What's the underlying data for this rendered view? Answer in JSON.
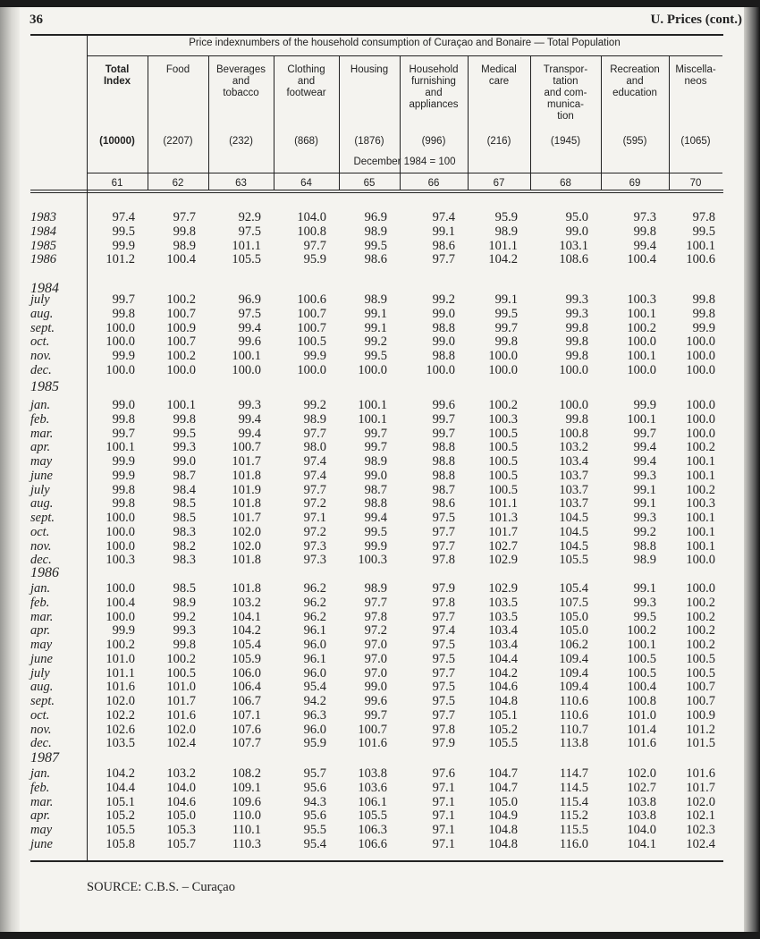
{
  "page_number": "36",
  "running_head": "U.  Prices  (cont.)",
  "table": {
    "title": "Price indexnumbers of the household consumption of Curaçao and Bonaire — Total Population",
    "base": "December 1984 = 100",
    "columns": [
      {
        "label": [
          "Total",
          "Index"
        ],
        "bold": true,
        "weight": "(10000)",
        "number": "61"
      },
      {
        "label": [
          "Food"
        ],
        "weight": "(2207)",
        "number": "62"
      },
      {
        "label": [
          "Beverages",
          "and",
          "tobacco"
        ],
        "weight": "(232)",
        "number": "63"
      },
      {
        "label": [
          "Clothing",
          "and",
          "footwear"
        ],
        "weight": "(868)",
        "number": "64"
      },
      {
        "label": [
          "Housing"
        ],
        "weight": "(1876)",
        "number": "65"
      },
      {
        "label": [
          "Household",
          "furnishing",
          "and",
          "appliances"
        ],
        "weight": "(996)",
        "number": "66"
      },
      {
        "label": [
          "Medical",
          "care"
        ],
        "weight": "(216)",
        "number": "67"
      },
      {
        "label": [
          "Transpor-",
          "tation",
          "and com-",
          "munica-",
          "tion"
        ],
        "weight": "(1945)",
        "number": "68"
      },
      {
        "label": [
          "Recreation",
          "and",
          "education"
        ],
        "weight": "(595)",
        "number": "69"
      },
      {
        "label": [
          "Miscella-",
          "neos"
        ],
        "weight": "(1065)",
        "number": "70"
      }
    ],
    "sections": [
      {
        "heading": "",
        "rows": [
          {
            "label": "1983",
            "values": [
              "97.4",
              "97.7",
              "92.9",
              "104.0",
              "96.9",
              "97.4",
              "95.9",
              "95.0",
              "97.3",
              "97.8"
            ]
          },
          {
            "label": "1984",
            "values": [
              "99.5",
              "99.8",
              "97.5",
              "100.8",
              "98.9",
              "99.1",
              "98.9",
              "99.0",
              "99.8",
              "99.5"
            ]
          },
          {
            "label": "1985",
            "values": [
              "99.9",
              "98.9",
              "101.1",
              "97.7",
              "99.5",
              "98.6",
              "101.1",
              "103.1",
              "99.4",
              "100.1"
            ]
          },
          {
            "label": "1986",
            "values": [
              "101.2",
              "100.4",
              "105.5",
              "95.9",
              "98.6",
              "97.7",
              "104.2",
              "108.6",
              "100.4",
              "100.6"
            ]
          }
        ]
      },
      {
        "heading": "1984",
        "rows": [
          {
            "label": "july",
            "values": [
              "99.7",
              "100.2",
              "96.9",
              "100.6",
              "98.9",
              "99.2",
              "99.1",
              "99.3",
              "100.3",
              "99.8"
            ]
          },
          {
            "label": "aug.",
            "values": [
              "99.8",
              "100.7",
              "97.5",
              "100.7",
              "99.1",
              "99.0",
              "99.5",
              "99.3",
              "100.1",
              "99.8"
            ]
          },
          {
            "label": "sept.",
            "values": [
              "100.0",
              "100.9",
              "99.4",
              "100.7",
              "99.1",
              "98.8",
              "99.7",
              "99.8",
              "100.2",
              "99.9"
            ]
          },
          {
            "label": "oct.",
            "values": [
              "100.0",
              "100.7",
              "99.6",
              "100.5",
              "99.2",
              "99.0",
              "99.8",
              "99.8",
              "100.0",
              "100.0"
            ]
          },
          {
            "label": "nov.",
            "values": [
              "99.9",
              "100.2",
              "100.1",
              "99.9",
              "99.5",
              "98.8",
              "100.0",
              "99.8",
              "100.1",
              "100.0"
            ]
          },
          {
            "label": "dec.",
            "values": [
              "100.0",
              "100.0",
              "100.0",
              "100.0",
              "100.0",
              "100.0",
              "100.0",
              "100.0",
              "100.0",
              "100.0"
            ]
          }
        ]
      },
      {
        "heading": "1985",
        "rows": [
          {
            "label": "jan.",
            "values": [
              "99.0",
              "100.1",
              "99.3",
              "99.2",
              "100.1",
              "99.6",
              "100.2",
              "100.0",
              "99.9",
              "100.0"
            ]
          },
          {
            "label": "feb.",
            "values": [
              "99.8",
              "99.8",
              "99.4",
              "98.9",
              "100.1",
              "99.7",
              "100.3",
              "99.8",
              "100.1",
              "100.0"
            ]
          },
          {
            "label": "mar.",
            "values": [
              "99.7",
              "99.5",
              "99.4",
              "97.7",
              "99.7",
              "99.7",
              "100.5",
              "100.8",
              "99.7",
              "100.0"
            ]
          },
          {
            "label": "apr.",
            "values": [
              "100.1",
              "99.3",
              "100.7",
              "98.0",
              "99.7",
              "98.8",
              "100.5",
              "103.2",
              "99.4",
              "100.2"
            ]
          },
          {
            "label": "may",
            "values": [
              "99.9",
              "99.0",
              "101.7",
              "97.4",
              "98.9",
              "98.8",
              "100.5",
              "103.4",
              "99.4",
              "100.1"
            ]
          },
          {
            "label": "june",
            "values": [
              "99.9",
              "98.7",
              "101.8",
              "97.4",
              "99.0",
              "98.8",
              "100.5",
              "103.7",
              "99.3",
              "100.1"
            ]
          },
          {
            "label": "july",
            "values": [
              "99.8",
              "98.4",
              "101.9",
              "97.7",
              "98.7",
              "98.7",
              "100.5",
              "103.7",
              "99.1",
              "100.2"
            ]
          },
          {
            "label": "aug.",
            "values": [
              "99.8",
              "98.5",
              "101.8",
              "97.2",
              "98.8",
              "98.6",
              "101.1",
              "103.7",
              "99.1",
              "100.3"
            ]
          },
          {
            "label": "sept.",
            "values": [
              "100.0",
              "98.5",
              "101.7",
              "97.1",
              "99.4",
              "97.5",
              "101.3",
              "104.5",
              "99.3",
              "100.1"
            ]
          },
          {
            "label": "oct.",
            "values": [
              "100.0",
              "98.3",
              "102.0",
              "97.2",
              "99.5",
              "97.7",
              "101.7",
              "104.5",
              "99.2",
              "100.1"
            ]
          },
          {
            "label": "nov.",
            "values": [
              "100.0",
              "98.2",
              "102.0",
              "97.3",
              "99.9",
              "97.7",
              "102.7",
              "104.5",
              "98.8",
              "100.1"
            ]
          },
          {
            "label": "dec.",
            "values": [
              "100.3",
              "98.3",
              "101.8",
              "97.3",
              "100.3",
              "97.8",
              "102.9",
              "105.5",
              "98.9",
              "100.0"
            ]
          }
        ]
      },
      {
        "heading": "1986",
        "rows": [
          {
            "label": "jan.",
            "values": [
              "100.0",
              "98.5",
              "101.8",
              "96.2",
              "98.9",
              "97.9",
              "102.9",
              "105.4",
              "99.1",
              "100.0"
            ]
          },
          {
            "label": "feb.",
            "values": [
              "100.4",
              "98.9",
              "103.2",
              "96.2",
              "97.7",
              "97.8",
              "103.5",
              "107.5",
              "99.3",
              "100.2"
            ]
          },
          {
            "label": "mar.",
            "values": [
              "100.0",
              "99.2",
              "104.1",
              "96.2",
              "97.8",
              "97.7",
              "103.5",
              "105.0",
              "99.5",
              "100.2"
            ]
          },
          {
            "label": "apr.",
            "values": [
              "99.9",
              "99.3",
              "104.2",
              "96.1",
              "97.2",
              "97.4",
              "103.4",
              "105.0",
              "100.2",
              "100.2"
            ]
          },
          {
            "label": "may",
            "values": [
              "100.2",
              "99.8",
              "105.4",
              "96.0",
              "97.0",
              "97.5",
              "103.4",
              "106.2",
              "100.1",
              "100.2"
            ]
          },
          {
            "label": "june",
            "values": [
              "101.0",
              "100.2",
              "105.9",
              "96.1",
              "97.0",
              "97.5",
              "104.4",
              "109.4",
              "100.5",
              "100.5"
            ]
          },
          {
            "label": "july",
            "values": [
              "101.1",
              "100.5",
              "106.0",
              "96.0",
              "97.0",
              "97.7",
              "104.2",
              "109.4",
              "100.5",
              "100.5"
            ]
          },
          {
            "label": "aug.",
            "values": [
              "101.6",
              "101.0",
              "106.4",
              "95.4",
              "99.0",
              "97.5",
              "104.6",
              "109.4",
              "100.4",
              "100.7"
            ]
          },
          {
            "label": "sept.",
            "values": [
              "102.0",
              "101.7",
              "106.7",
              "94.2",
              "99.6",
              "97.5",
              "104.8",
              "110.6",
              "100.8",
              "100.7"
            ]
          },
          {
            "label": "oct.",
            "values": [
              "102.2",
              "101.6",
              "107.1",
              "96.3",
              "99.7",
              "97.7",
              "105.1",
              "110.6",
              "101.0",
              "100.9"
            ]
          },
          {
            "label": "nov.",
            "values": [
              "102.6",
              "102.0",
              "107.6",
              "96.0",
              "100.7",
              "97.8",
              "105.2",
              "110.7",
              "101.4",
              "101.2"
            ]
          },
          {
            "label": "dec.",
            "values": [
              "103.5",
              "102.4",
              "107.7",
              "95.9",
              "101.6",
              "97.9",
              "105.5",
              "113.8",
              "101.6",
              "101.5"
            ]
          }
        ]
      },
      {
        "heading": "1987",
        "rows": [
          {
            "label": "jan.",
            "values": [
              "104.2",
              "103.2",
              "108.2",
              "95.7",
              "103.8",
              "97.6",
              "104.7",
              "114.7",
              "102.0",
              "101.6"
            ]
          },
          {
            "label": "feb.",
            "values": [
              "104.4",
              "104.0",
              "109.1",
              "95.6",
              "103.6",
              "97.1",
              "104.7",
              "114.5",
              "102.7",
              "101.7"
            ]
          },
          {
            "label": "mar.",
            "values": [
              "105.1",
              "104.6",
              "109.6",
              "94.3",
              "106.1",
              "97.1",
              "105.0",
              "115.4",
              "103.8",
              "102.0"
            ]
          },
          {
            "label": "apr.",
            "values": [
              "105.2",
              "105.0",
              "110.0",
              "95.6",
              "105.5",
              "97.1",
              "104.9",
              "115.2",
              "103.8",
              "102.1"
            ]
          },
          {
            "label": "may",
            "values": [
              "105.5",
              "105.3",
              "110.1",
              "95.5",
              "106.3",
              "97.1",
              "104.8",
              "115.5",
              "104.0",
              "102.3"
            ]
          },
          {
            "label": "june",
            "values": [
              "105.8",
              "105.7",
              "110.3",
              "95.4",
              "106.6",
              "97.1",
              "104.8",
              "116.0",
              "104.1",
              "102.4"
            ]
          }
        ]
      }
    ]
  },
  "source": "SOURCE:   C.B.S. – Curaçao"
}
